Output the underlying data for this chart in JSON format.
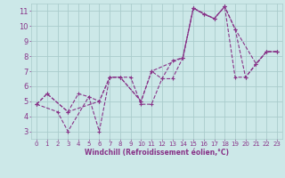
{
  "background_color": "#cce8e8",
  "grid_color": "#aacccc",
  "line_color": "#883388",
  "xlabel": "Windchill (Refroidissement éolien,°C)",
  "xlim": [
    -0.5,
    23.5
  ],
  "ylim": [
    2.5,
    11.5
  ],
  "yticks": [
    3,
    4,
    5,
    6,
    7,
    8,
    9,
    10,
    11
  ],
  "xticks": [
    0,
    1,
    2,
    3,
    4,
    5,
    6,
    7,
    8,
    9,
    10,
    11,
    12,
    13,
    14,
    15,
    16,
    17,
    18,
    19,
    20,
    21,
    22,
    23
  ],
  "lines": [
    {
      "x": [
        0,
        1,
        3,
        4,
        5,
        6,
        7,
        8,
        10,
        11,
        12,
        13,
        14,
        15,
        16,
        17,
        18,
        19,
        21,
        22,
        23
      ],
      "y": [
        4.8,
        5.5,
        4.3,
        5.5,
        5.3,
        3.0,
        6.6,
        6.6,
        5.0,
        7.0,
        6.5,
        7.7,
        7.9,
        11.2,
        10.8,
        10.5,
        11.3,
        9.8,
        7.5,
        8.3,
        8.3
      ]
    },
    {
      "x": [
        0,
        2,
        3,
        5,
        6,
        7,
        8,
        9,
        10,
        11,
        12,
        13,
        14,
        15,
        16,
        17,
        18,
        19,
        20,
        22,
        23
      ],
      "y": [
        4.8,
        4.3,
        3.0,
        5.3,
        5.0,
        6.6,
        6.6,
        6.6,
        4.8,
        4.8,
        6.5,
        6.5,
        7.9,
        11.2,
        10.8,
        10.5,
        11.3,
        6.6,
        6.6,
        8.3,
        8.3
      ]
    },
    {
      "x": [
        0,
        1,
        3,
        6,
        7,
        8,
        10,
        11,
        14,
        15,
        17,
        18,
        19,
        20,
        21,
        22,
        23
      ],
      "y": [
        4.8,
        5.5,
        4.3,
        5.0,
        6.6,
        6.6,
        5.0,
        7.0,
        7.9,
        11.2,
        10.5,
        11.3,
        9.8,
        6.6,
        7.5,
        8.3,
        8.3
      ]
    }
  ]
}
